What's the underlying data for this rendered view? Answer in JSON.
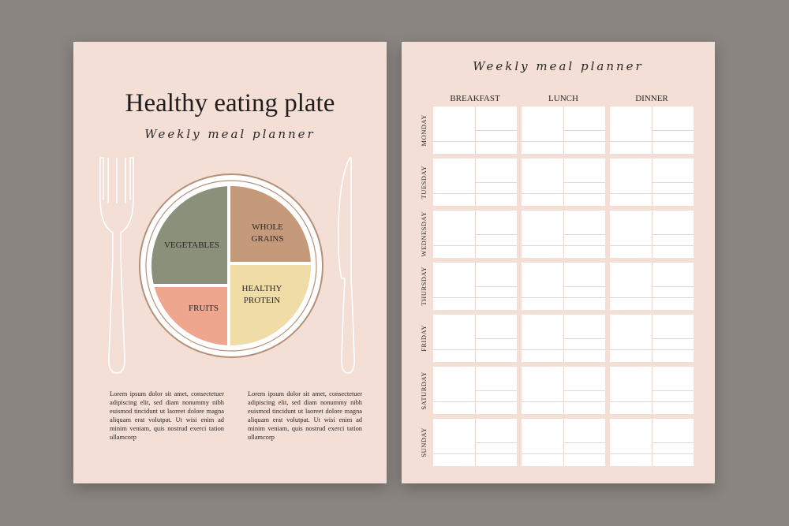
{
  "left_page": {
    "title": "Healthy eating plate",
    "subtitle": "Weekly meal planner",
    "plate": {
      "sections": [
        {
          "id": "vegetables",
          "label": "VEGETABLES",
          "color": "#8a907a"
        },
        {
          "id": "grains",
          "label_line1": "WHOLE",
          "label_line2": "GRAINS",
          "color": "#c49a7b"
        },
        {
          "id": "fruits",
          "label": "FRUITS",
          "color": "#eea68e"
        },
        {
          "id": "protein",
          "label_line1": "HEALTHY",
          "label_line2": "PROTEIN",
          "color": "#efdca6"
        }
      ],
      "rim_color": "#b59079"
    },
    "text_left": "Lorem ipsum dolor sit amet, consectetuer adipiscing elit, sed diam nonummy nibh euismod tincidunt ut laoreet dolore magna aliquam erat volutpat. Ut wisi enim ad minim veniam, quis nostrud exerci tation ullamcorp",
    "text_right": "Lorem ipsum dolor sit amet, consectetuer adipiscing elit, sed diam nonummy nibh euismod tincidunt ut laoreet dolore magna aliquam erat volutpat. Ut wisi enim ad minim veniam, quis nostrud exerci tation ullamcorp"
  },
  "right_page": {
    "subtitle": "Weekly meal planner",
    "columns": [
      "BREAKFAST",
      "LUNCH",
      "DINNER"
    ],
    "days": [
      "MONDAY",
      "TUESDAY",
      "WEDNESDAY",
      "THURSDAY",
      "FRIDAY",
      "SATURDAY",
      "SUNDAY"
    ]
  },
  "colors": {
    "background": "#8b8582",
    "paper": "#f3dfd6"
  },
  "watermark_id": "512085876"
}
